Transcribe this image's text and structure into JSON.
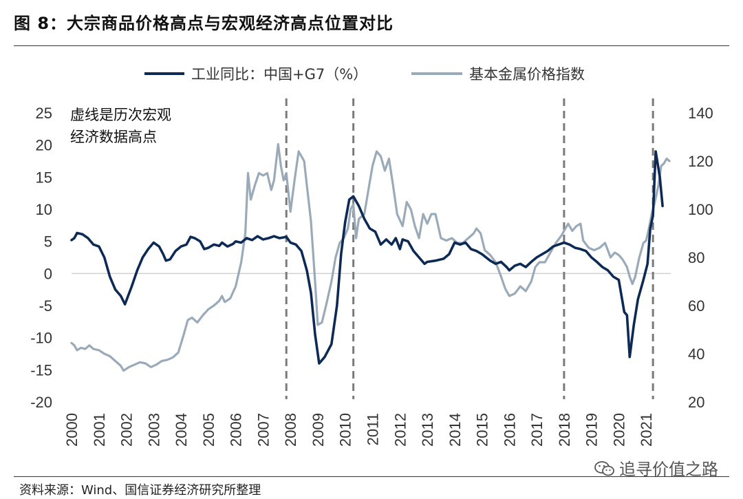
{
  "title": "图  8：大宗商品价格高点与宏观经济高点位置对比",
  "source": "资料来源：Wind、国信证券经济研究所整理",
  "watermark": "追寻价值之路",
  "chart_data": {
    "type": "line",
    "annotation": [
      "虚线是历次宏观",
      "经济数据高点"
    ],
    "left_axis": {
      "ylim": [
        -20,
        25
      ],
      "ticks": [
        "25",
        "20",
        "15",
        "10",
        "5",
        "0",
        "-5",
        "-10",
        "-15",
        "-20"
      ]
    },
    "right_axis": {
      "ylim": [
        20,
        140
      ],
      "ticks": [
        "140",
        "120",
        "100",
        "80",
        "60",
        "40",
        "20"
      ]
    },
    "x_ticks": [
      "2000",
      "2001",
      "2002",
      "2003",
      "2004",
      "2005",
      "2006",
      "2007",
      "2008",
      "2009",
      "2010",
      "2011",
      "2012",
      "2013",
      "2014",
      "2015",
      "2016",
      "2017",
      "2018",
      "2019",
      "2020",
      "2021"
    ],
    "xlim": [
      2000,
      2021.9
    ],
    "vlines": [
      2007.85,
      2010.3,
      2018.0,
      2021.25
    ],
    "series": [
      {
        "name": "工业同比：中国+G7（%）",
        "axis": "left",
        "color": "#0d2a55",
        "points": [
          [
            2000.0,
            5.2
          ],
          [
            2000.1,
            5.5
          ],
          [
            2000.2,
            6.3
          ],
          [
            2000.4,
            6.1
          ],
          [
            2000.6,
            5.5
          ],
          [
            2000.8,
            4.5
          ],
          [
            2001.0,
            4.2
          ],
          [
            2001.2,
            2.5
          ],
          [
            2001.4,
            -0.5
          ],
          [
            2001.6,
            -2.5
          ],
          [
            2001.8,
            -3.5
          ],
          [
            2001.95,
            -4.8
          ],
          [
            2002.2,
            -2.0
          ],
          [
            2002.4,
            0.5
          ],
          [
            2002.6,
            2.5
          ],
          [
            2002.8,
            3.8
          ],
          [
            2003.0,
            4.8
          ],
          [
            2003.2,
            4.2
          ],
          [
            2003.35,
            3.0
          ],
          [
            2003.45,
            2.0
          ],
          [
            2003.6,
            2.2
          ],
          [
            2003.8,
            3.5
          ],
          [
            2004.0,
            4.2
          ],
          [
            2004.2,
            4.5
          ],
          [
            2004.35,
            5.7
          ],
          [
            2004.5,
            5.5
          ],
          [
            2004.7,
            5.0
          ],
          [
            2004.85,
            3.8
          ],
          [
            2005.0,
            4.0
          ],
          [
            2005.2,
            4.5
          ],
          [
            2005.4,
            4.3
          ],
          [
            2005.5,
            4.8
          ],
          [
            2005.7,
            4.2
          ],
          [
            2005.9,
            4.6
          ],
          [
            2006.0,
            5.0
          ],
          [
            2006.2,
            4.8
          ],
          [
            2006.4,
            5.5
          ],
          [
            2006.6,
            5.2
          ],
          [
            2006.8,
            5.8
          ],
          [
            2007.0,
            5.3
          ],
          [
            2007.2,
            5.5
          ],
          [
            2007.4,
            5.8
          ],
          [
            2007.6,
            5.5
          ],
          [
            2007.85,
            5.7
          ],
          [
            2008.0,
            4.8
          ],
          [
            2008.2,
            4.5
          ],
          [
            2008.4,
            3.5
          ],
          [
            2008.6,
            0.5
          ],
          [
            2008.75,
            -3.0
          ],
          [
            2008.9,
            -9.5
          ],
          [
            2009.05,
            -14.0
          ],
          [
            2009.25,
            -13.0
          ],
          [
            2009.5,
            -11.0
          ],
          [
            2009.7,
            -5.0
          ],
          [
            2009.85,
            3.0
          ],
          [
            2010.0,
            8.0
          ],
          [
            2010.15,
            11.5
          ],
          [
            2010.3,
            12.0
          ],
          [
            2010.5,
            10.5
          ],
          [
            2010.7,
            8.5
          ],
          [
            2010.9,
            7.0
          ],
          [
            2011.1,
            6.5
          ],
          [
            2011.3,
            4.5
          ],
          [
            2011.5,
            5.3
          ],
          [
            2011.7,
            4.5
          ],
          [
            2011.85,
            5.5
          ],
          [
            2012.0,
            3.8
          ],
          [
            2012.1,
            5.3
          ],
          [
            2012.3,
            5.0
          ],
          [
            2012.5,
            3.5
          ],
          [
            2012.7,
            2.5
          ],
          [
            2012.9,
            1.5
          ],
          [
            2013.0,
            1.8
          ],
          [
            2013.3,
            2.0
          ],
          [
            2013.6,
            2.3
          ],
          [
            2013.8,
            3.0
          ],
          [
            2014.0,
            4.8
          ],
          [
            2014.2,
            4.5
          ],
          [
            2014.4,
            4.8
          ],
          [
            2014.6,
            3.8
          ],
          [
            2014.8,
            3.5
          ],
          [
            2015.0,
            3.0
          ],
          [
            2015.3,
            2.0
          ],
          [
            2015.5,
            1.5
          ],
          [
            2015.7,
            1.8
          ],
          [
            2015.9,
            1.0
          ],
          [
            2016.0,
            0.5
          ],
          [
            2016.2,
            1.2
          ],
          [
            2016.4,
            1.5
          ],
          [
            2016.6,
            1.0
          ],
          [
            2016.8,
            1.8
          ],
          [
            2017.0,
            2.5
          ],
          [
            2017.2,
            3.0
          ],
          [
            2017.4,
            3.5
          ],
          [
            2017.6,
            4.2
          ],
          [
            2017.8,
            4.5
          ],
          [
            2018.0,
            4.8
          ],
          [
            2018.2,
            4.5
          ],
          [
            2018.4,
            4.0
          ],
          [
            2018.6,
            3.8
          ],
          [
            2018.8,
            3.5
          ],
          [
            2019.0,
            2.5
          ],
          [
            2019.2,
            1.8
          ],
          [
            2019.4,
            1.0
          ],
          [
            2019.6,
            0.5
          ],
          [
            2019.8,
            -0.5
          ],
          [
            2020.0,
            -1.0
          ],
          [
            2020.2,
            -6.0
          ],
          [
            2020.3,
            -6.5
          ],
          [
            2020.4,
            -13.0
          ],
          [
            2020.55,
            -8.0
          ],
          [
            2020.7,
            -4.0
          ],
          [
            2020.9,
            -1.0
          ],
          [
            2021.05,
            1.5
          ],
          [
            2021.15,
            7.0
          ],
          [
            2021.25,
            9.0
          ],
          [
            2021.35,
            19.0
          ],
          [
            2021.5,
            15.0
          ],
          [
            2021.6,
            10.5
          ]
        ]
      },
      {
        "name": "基本金属价格指数",
        "axis": "right",
        "color": "#9aaab8",
        "points": [
          [
            2000.0,
            44.5
          ],
          [
            2000.1,
            43.5
          ],
          [
            2000.2,
            41.5
          ],
          [
            2000.35,
            42.5
          ],
          [
            2000.5,
            42.0
          ],
          [
            2000.65,
            43.5
          ],
          [
            2000.8,
            42.0
          ],
          [
            2001.0,
            41.5
          ],
          [
            2001.2,
            40.0
          ],
          [
            2001.4,
            39.0
          ],
          [
            2001.6,
            37.0
          ],
          [
            2001.8,
            35.0
          ],
          [
            2001.9,
            33.0
          ],
          [
            2002.1,
            34.5
          ],
          [
            2002.3,
            35.5
          ],
          [
            2002.5,
            36.5
          ],
          [
            2002.7,
            36.0
          ],
          [
            2002.9,
            34.5
          ],
          [
            2003.1,
            35.5
          ],
          [
            2003.3,
            37.0
          ],
          [
            2003.5,
            37.5
          ],
          [
            2003.7,
            38.5
          ],
          [
            2003.9,
            40.5
          ],
          [
            2004.1,
            48.0
          ],
          [
            2004.25,
            54.0
          ],
          [
            2004.4,
            55.0
          ],
          [
            2004.6,
            53.0
          ],
          [
            2004.8,
            56.0
          ],
          [
            2005.0,
            58.5
          ],
          [
            2005.2,
            60.0
          ],
          [
            2005.4,
            62.0
          ],
          [
            2005.5,
            64.0
          ],
          [
            2005.6,
            61.5
          ],
          [
            2005.8,
            63.0
          ],
          [
            2006.0,
            68.0
          ],
          [
            2006.2,
            78.0
          ],
          [
            2006.35,
            90.0
          ],
          [
            2006.45,
            115.0
          ],
          [
            2006.55,
            104.0
          ],
          [
            2006.7,
            110.0
          ],
          [
            2006.85,
            115.0
          ],
          [
            2007.0,
            114.0
          ],
          [
            2007.15,
            115.0
          ],
          [
            2007.3,
            108.0
          ],
          [
            2007.4,
            112.0
          ],
          [
            2007.55,
            127.0
          ],
          [
            2007.65,
            118.0
          ],
          [
            2007.75,
            112.0
          ],
          [
            2007.85,
            115.0
          ],
          [
            2008.0,
            99.0
          ],
          [
            2008.15,
            112.0
          ],
          [
            2008.3,
            124.0
          ],
          [
            2008.5,
            120.0
          ],
          [
            2008.6,
            110.0
          ],
          [
            2008.75,
            95.0
          ],
          [
            2008.9,
            70.0
          ],
          [
            2009.0,
            52.0
          ],
          [
            2009.15,
            53.0
          ],
          [
            2009.3,
            60.0
          ],
          [
            2009.5,
            70.0
          ],
          [
            2009.65,
            80.0
          ],
          [
            2009.8,
            86.0
          ],
          [
            2009.95,
            88.0
          ],
          [
            2010.1,
            92.0
          ],
          [
            2010.2,
            100.0
          ],
          [
            2010.3,
            102.0
          ],
          [
            2010.4,
            88.0
          ],
          [
            2010.5,
            96.0
          ],
          [
            2010.7,
            98.0
          ],
          [
            2010.85,
            108.0
          ],
          [
            2011.0,
            118.0
          ],
          [
            2011.15,
            124.0
          ],
          [
            2011.3,
            122.0
          ],
          [
            2011.45,
            116.0
          ],
          [
            2011.6,
            121.0
          ],
          [
            2011.75,
            110.0
          ],
          [
            2011.9,
            98.0
          ],
          [
            2012.1,
            93.0
          ],
          [
            2012.25,
            103.0
          ],
          [
            2012.4,
            100.0
          ],
          [
            2012.55,
            93.0
          ],
          [
            2012.7,
            88.0
          ],
          [
            2012.85,
            98.0
          ],
          [
            2013.0,
            94.0
          ],
          [
            2013.15,
            98.0
          ],
          [
            2013.3,
            98.0
          ],
          [
            2013.5,
            88.0
          ],
          [
            2013.7,
            87.0
          ],
          [
            2013.9,
            88.0
          ],
          [
            2014.1,
            86.0
          ],
          [
            2014.3,
            86.0
          ],
          [
            2014.5,
            88.0
          ],
          [
            2014.7,
            90.0
          ],
          [
            2014.8,
            92.0
          ],
          [
            2014.95,
            90.0
          ],
          [
            2015.1,
            83.0
          ],
          [
            2015.3,
            81.0
          ],
          [
            2015.5,
            78.0
          ],
          [
            2015.7,
            72.0
          ],
          [
            2015.85,
            67.0
          ],
          [
            2016.0,
            64.0
          ],
          [
            2016.2,
            65.0
          ],
          [
            2016.4,
            68.0
          ],
          [
            2016.6,
            66.0
          ],
          [
            2016.8,
            70.0
          ],
          [
            2016.95,
            76.0
          ],
          [
            2017.1,
            78.0
          ],
          [
            2017.3,
            78.0
          ],
          [
            2017.5,
            82.0
          ],
          [
            2017.7,
            86.0
          ],
          [
            2017.9,
            89.0
          ],
          [
            2018.0,
            91.0
          ],
          [
            2018.15,
            94.0
          ],
          [
            2018.3,
            91.0
          ],
          [
            2018.45,
            93.0
          ],
          [
            2018.6,
            94.0
          ],
          [
            2018.7,
            87.0
          ],
          [
            2018.9,
            84.0
          ],
          [
            2019.1,
            83.0
          ],
          [
            2019.3,
            84.0
          ],
          [
            2019.5,
            86.0
          ],
          [
            2019.7,
            80.0
          ],
          [
            2019.85,
            82.0
          ],
          [
            2020.0,
            81.0
          ],
          [
            2020.15,
            79.0
          ],
          [
            2020.3,
            76.0
          ],
          [
            2020.4,
            72.0
          ],
          [
            2020.5,
            69.0
          ],
          [
            2020.6,
            72.0
          ],
          [
            2020.75,
            80.0
          ],
          [
            2020.9,
            86.0
          ],
          [
            2021.0,
            87.0
          ],
          [
            2021.1,
            92.0
          ],
          [
            2021.2,
            98.0
          ],
          [
            2021.3,
            102.0
          ],
          [
            2021.45,
            110.0
          ],
          [
            2021.55,
            118.0
          ],
          [
            2021.65,
            119.0
          ],
          [
            2021.75,
            121.0
          ],
          [
            2021.85,
            120.0
          ]
        ]
      }
    ]
  }
}
